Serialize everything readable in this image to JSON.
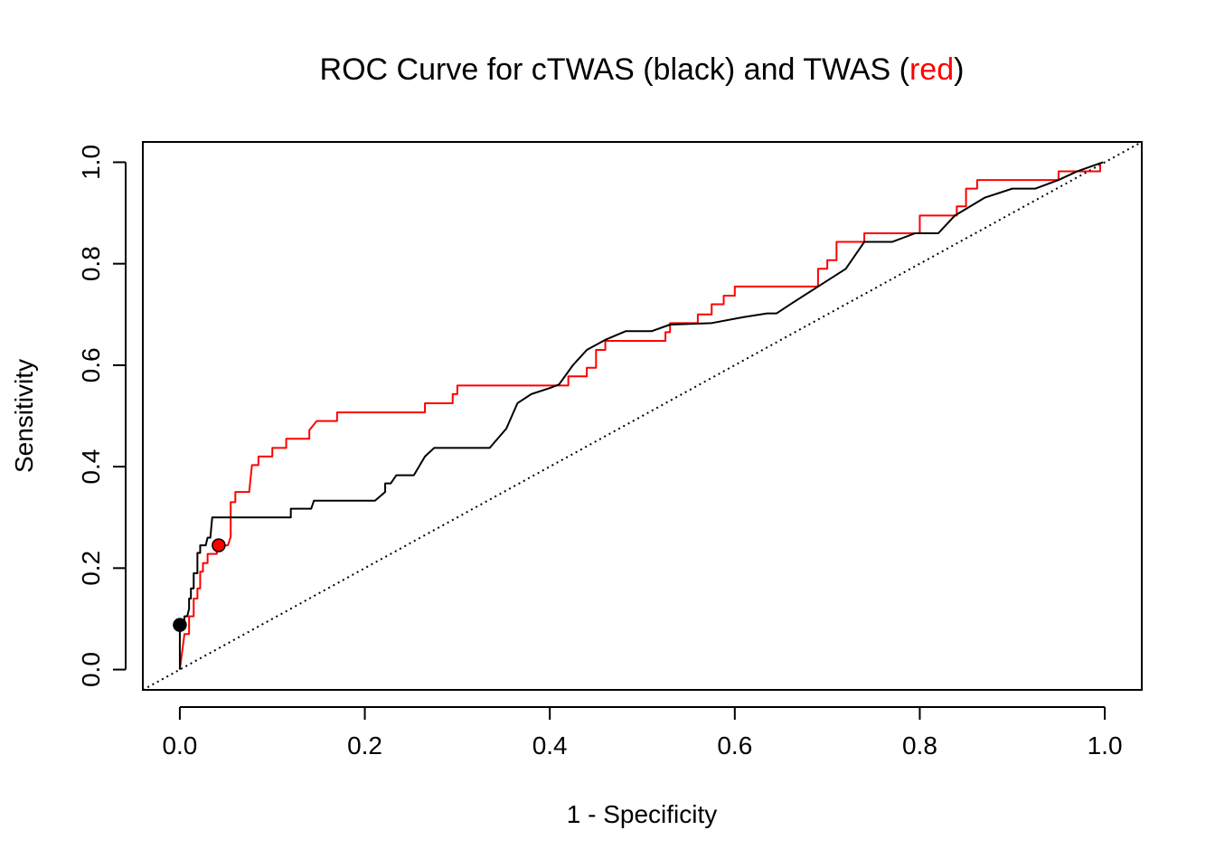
{
  "chart_data": {
    "type": "line",
    "title_parts": [
      {
        "text": "ROC Curve for cTWAS (black) and TWAS (",
        "color": "#000000"
      },
      {
        "text": "red",
        "color": "#ff0000"
      },
      {
        "text": ")",
        "color": "#000000"
      }
    ],
    "xlabel": "1 - Specificity",
    "ylabel": "Sensitivity",
    "xlim": [
      -0.04,
      1.04
    ],
    "ylim": [
      -0.04,
      1.04
    ],
    "xticks": [
      0.0,
      0.2,
      0.4,
      0.6,
      0.8,
      1.0
    ],
    "xtick_labels": [
      "0.0",
      "0.2",
      "0.4",
      "0.6",
      "0.8",
      "1.0"
    ],
    "yticks": [
      0.0,
      0.2,
      0.4,
      0.6,
      0.8,
      1.0
    ],
    "ytick_labels": [
      "0.0",
      "0.2",
      "0.4",
      "0.6",
      "0.8",
      "1.0"
    ],
    "grid": false,
    "reference_line": {
      "from": [
        -0.04,
        -0.04
      ],
      "to": [
        1.04,
        1.04
      ],
      "style": "dotted"
    },
    "series": [
      {
        "name": "cTWAS",
        "color": "#000000",
        "points": [
          [
            0.0,
            0.0
          ],
          [
            0.0,
            0.09
          ],
          [
            0.005,
            0.09
          ],
          [
            0.005,
            0.105
          ],
          [
            0.008,
            0.105
          ],
          [
            0.01,
            0.12
          ],
          [
            0.01,
            0.14
          ],
          [
            0.012,
            0.14
          ],
          [
            0.012,
            0.16
          ],
          [
            0.015,
            0.16
          ],
          [
            0.015,
            0.19
          ],
          [
            0.019,
            0.19
          ],
          [
            0.019,
            0.23
          ],
          [
            0.022,
            0.23
          ],
          [
            0.022,
            0.245
          ],
          [
            0.028,
            0.245
          ],
          [
            0.03,
            0.26
          ],
          [
            0.033,
            0.26
          ],
          [
            0.035,
            0.3
          ],
          [
            0.12,
            0.3
          ],
          [
            0.12,
            0.317
          ],
          [
            0.142,
            0.317
          ],
          [
            0.145,
            0.333
          ],
          [
            0.211,
            0.333
          ],
          [
            0.222,
            0.35
          ],
          [
            0.222,
            0.367
          ],
          [
            0.228,
            0.367
          ],
          [
            0.234,
            0.383
          ],
          [
            0.253,
            0.383
          ],
          [
            0.265,
            0.42
          ],
          [
            0.275,
            0.437
          ],
          [
            0.335,
            0.437
          ],
          [
            0.353,
            0.475
          ],
          [
            0.365,
            0.525
          ],
          [
            0.38,
            0.543
          ],
          [
            0.4,
            0.555
          ],
          [
            0.41,
            0.562
          ],
          [
            0.425,
            0.6
          ],
          [
            0.44,
            0.63
          ],
          [
            0.46,
            0.65
          ],
          [
            0.482,
            0.667
          ],
          [
            0.51,
            0.667
          ],
          [
            0.53,
            0.68
          ],
          [
            0.575,
            0.683
          ],
          [
            0.61,
            0.695
          ],
          [
            0.635,
            0.702
          ],
          [
            0.645,
            0.702
          ],
          [
            0.66,
            0.72
          ],
          [
            0.69,
            0.755
          ],
          [
            0.72,
            0.79
          ],
          [
            0.74,
            0.843
          ],
          [
            0.77,
            0.843
          ],
          [
            0.795,
            0.86
          ],
          [
            0.82,
            0.86
          ],
          [
            0.838,
            0.895
          ],
          [
            0.87,
            0.93
          ],
          [
            0.9,
            0.948
          ],
          [
            0.925,
            0.948
          ],
          [
            0.95,
            0.965
          ],
          [
            0.97,
            0.982
          ],
          [
            0.998,
            1.0
          ]
        ]
      },
      {
        "name": "TWAS",
        "color": "#ff0000",
        "points": [
          [
            0.0,
            0.0
          ],
          [
            0.005,
            0.07
          ],
          [
            0.01,
            0.07
          ],
          [
            0.01,
            0.105
          ],
          [
            0.015,
            0.105
          ],
          [
            0.015,
            0.14
          ],
          [
            0.019,
            0.14
          ],
          [
            0.019,
            0.16
          ],
          [
            0.022,
            0.16
          ],
          [
            0.022,
            0.193
          ],
          [
            0.025,
            0.193
          ],
          [
            0.025,
            0.21
          ],
          [
            0.03,
            0.21
          ],
          [
            0.03,
            0.228
          ],
          [
            0.04,
            0.228
          ],
          [
            0.04,
            0.245
          ],
          [
            0.052,
            0.245
          ],
          [
            0.055,
            0.262
          ],
          [
            0.055,
            0.33
          ],
          [
            0.06,
            0.33
          ],
          [
            0.06,
            0.35
          ],
          [
            0.075,
            0.35
          ],
          [
            0.078,
            0.403
          ],
          [
            0.085,
            0.403
          ],
          [
            0.085,
            0.42
          ],
          [
            0.1,
            0.42
          ],
          [
            0.1,
            0.437
          ],
          [
            0.115,
            0.437
          ],
          [
            0.115,
            0.455
          ],
          [
            0.14,
            0.455
          ],
          [
            0.14,
            0.472
          ],
          [
            0.148,
            0.49
          ],
          [
            0.17,
            0.49
          ],
          [
            0.17,
            0.507
          ],
          [
            0.265,
            0.507
          ],
          [
            0.265,
            0.525
          ],
          [
            0.295,
            0.525
          ],
          [
            0.295,
            0.543
          ],
          [
            0.3,
            0.543
          ],
          [
            0.3,
            0.56
          ],
          [
            0.42,
            0.56
          ],
          [
            0.42,
            0.578
          ],
          [
            0.44,
            0.578
          ],
          [
            0.44,
            0.595
          ],
          [
            0.45,
            0.595
          ],
          [
            0.45,
            0.63
          ],
          [
            0.46,
            0.63
          ],
          [
            0.46,
            0.648
          ],
          [
            0.525,
            0.648
          ],
          [
            0.525,
            0.665
          ],
          [
            0.53,
            0.665
          ],
          [
            0.53,
            0.683
          ],
          [
            0.56,
            0.683
          ],
          [
            0.56,
            0.7
          ],
          [
            0.575,
            0.7
          ],
          [
            0.575,
            0.72
          ],
          [
            0.588,
            0.72
          ],
          [
            0.588,
            0.737
          ],
          [
            0.6,
            0.737
          ],
          [
            0.6,
            0.755
          ],
          [
            0.69,
            0.755
          ],
          [
            0.69,
            0.79
          ],
          [
            0.7,
            0.79
          ],
          [
            0.7,
            0.807
          ],
          [
            0.71,
            0.807
          ],
          [
            0.71,
            0.843
          ],
          [
            0.74,
            0.843
          ],
          [
            0.74,
            0.86
          ],
          [
            0.8,
            0.86
          ],
          [
            0.8,
            0.895
          ],
          [
            0.84,
            0.895
          ],
          [
            0.84,
            0.913
          ],
          [
            0.85,
            0.913
          ],
          [
            0.85,
            0.948
          ],
          [
            0.862,
            0.948
          ],
          [
            0.862,
            0.965
          ],
          [
            0.95,
            0.965
          ],
          [
            0.95,
            0.982
          ],
          [
            0.995,
            0.982
          ],
          [
            0.995,
            1.0
          ]
        ]
      }
    ],
    "markers": [
      {
        "series": "cTWAS",
        "x": 0.0,
        "y": 0.088,
        "fill": "#000000"
      },
      {
        "series": "TWAS",
        "x": 0.042,
        "y": 0.245,
        "fill": "#ff0000"
      }
    ]
  }
}
